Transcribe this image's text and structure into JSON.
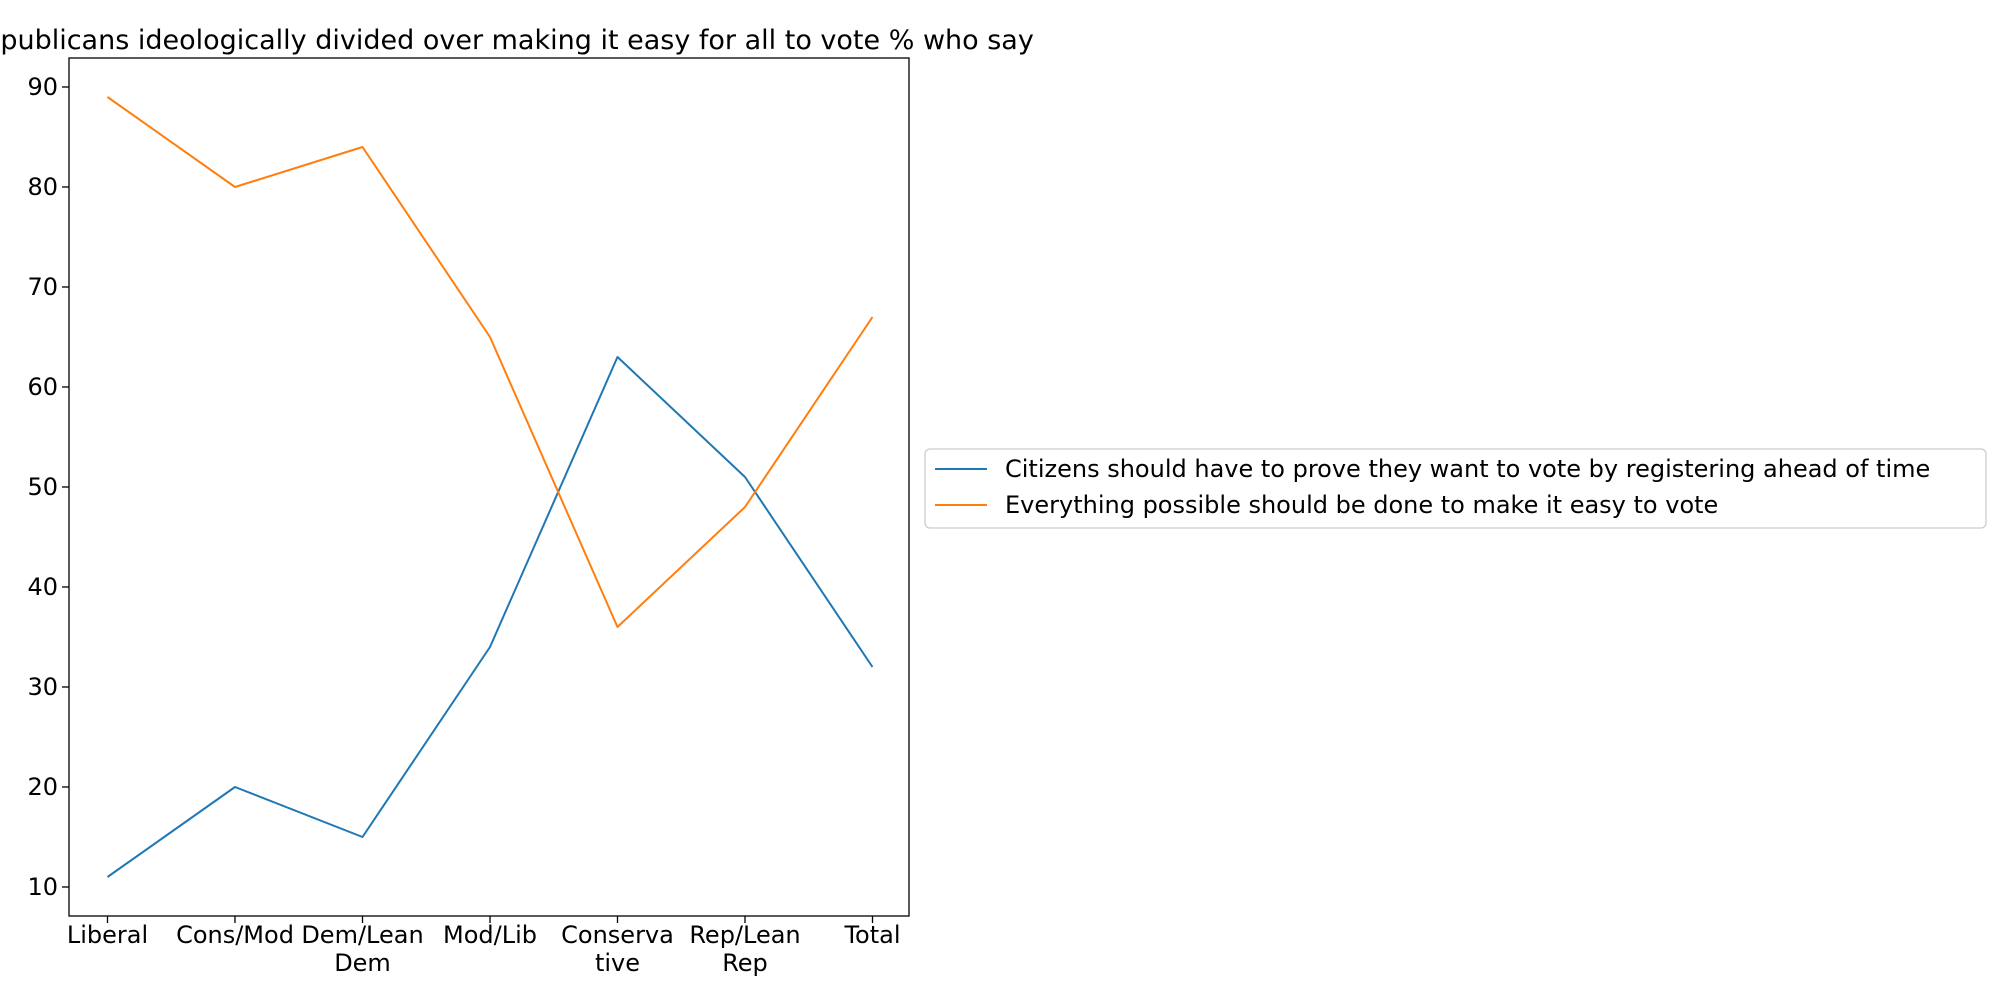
{
  "chart_data": {
    "type": "line",
    "title": "Republicans ideologically divided over making it easy for all to vote % who say",
    "xlabel": "",
    "ylabel": "",
    "categories": [
      [
        "Liberal"
      ],
      [
        "Cons/Mod"
      ],
      [
        "Dem/Lean",
        "Dem"
      ],
      [
        "Mod/Lib"
      ],
      [
        "Conserva",
        "tive"
      ],
      [
        "Rep/Lean",
        "Rep"
      ],
      [
        "Total"
      ]
    ],
    "series": [
      {
        "name": "Citizens should have to prove they want to vote by registering ahead of time",
        "color": "#1f77b4",
        "values": [
          11,
          20,
          15,
          34,
          63,
          51,
          32
        ]
      },
      {
        "name": "Everything possible should be done to make it easy to vote",
        "color": "#ff7f0e",
        "values": [
          89,
          80,
          84,
          65,
          36,
          48,
          67
        ]
      }
    ],
    "ylim": [
      7.1,
      92.9
    ],
    "yticks": [
      10,
      20,
      30,
      40,
      50,
      60,
      70,
      80,
      90
    ],
    "grid": false,
    "legend_position": "right"
  }
}
